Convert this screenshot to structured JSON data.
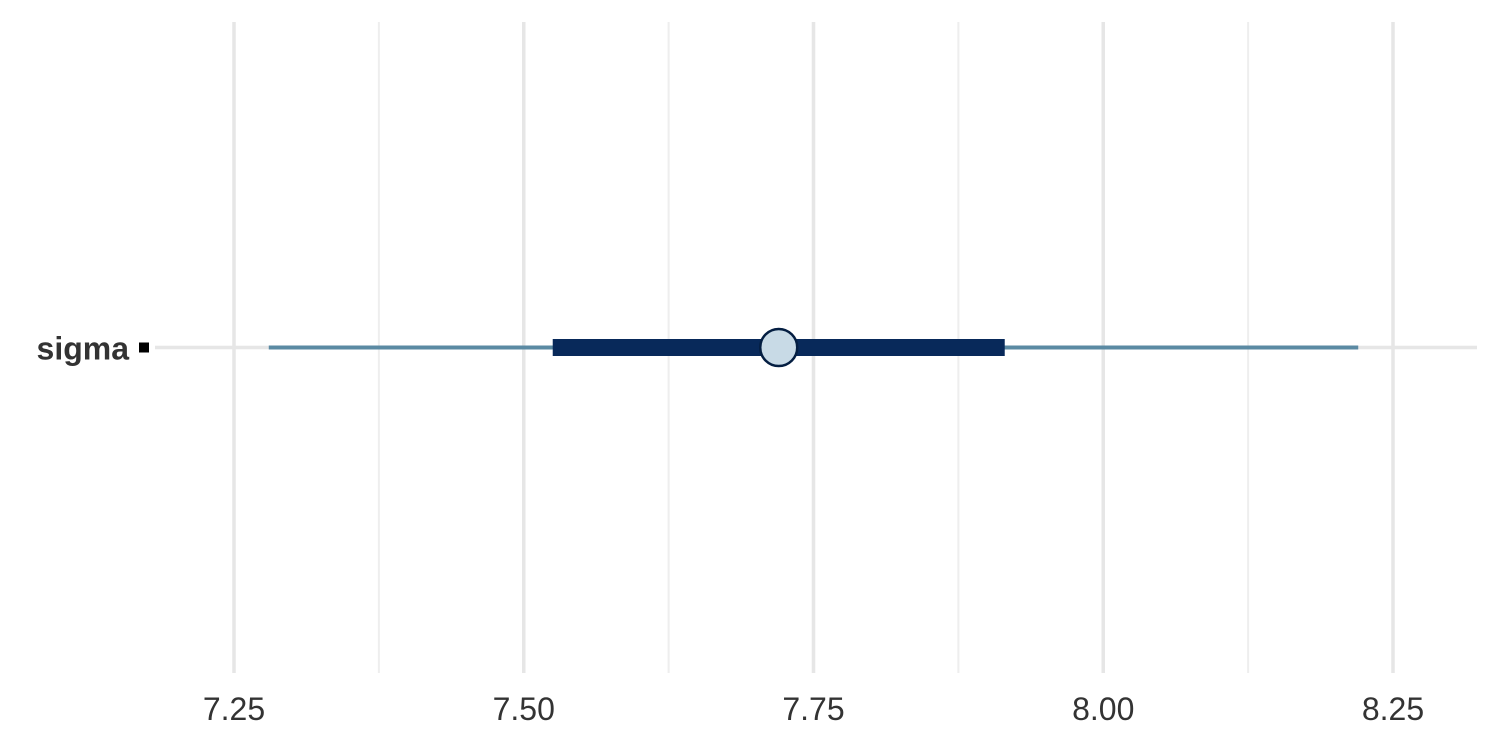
{
  "chart_data": {
    "type": "interval",
    "parameters": [
      "sigma"
    ],
    "estimates": [
      {
        "parameter": "sigma",
        "point": 7.72,
        "inner_interval": [
          7.525,
          7.915
        ],
        "outer_interval": [
          7.28,
          8.22
        ]
      }
    ],
    "x_ticks": [
      7.25,
      7.5,
      7.75,
      8.0,
      8.25
    ],
    "x_tick_labels": [
      "7.25",
      "7.50",
      "7.75",
      "8.00",
      "8.25"
    ],
    "x_minor_ticks": [
      7.375,
      7.625,
      7.875,
      8.125
    ],
    "xlim": [
      7.18,
      8.33
    ],
    "title": "",
    "xlabel": "",
    "ylabel": "",
    "grid": true,
    "legend": "none",
    "colors": {
      "outer_interval": "#5b8aa3",
      "inner_interval": "#08295a",
      "point_fill": "#c8dae6",
      "point_stroke": "#041e42",
      "major_grid": "#e6e6e6",
      "minor_grid": "#eeeeee",
      "label": "#333333",
      "tick_mark": "#000000"
    }
  }
}
